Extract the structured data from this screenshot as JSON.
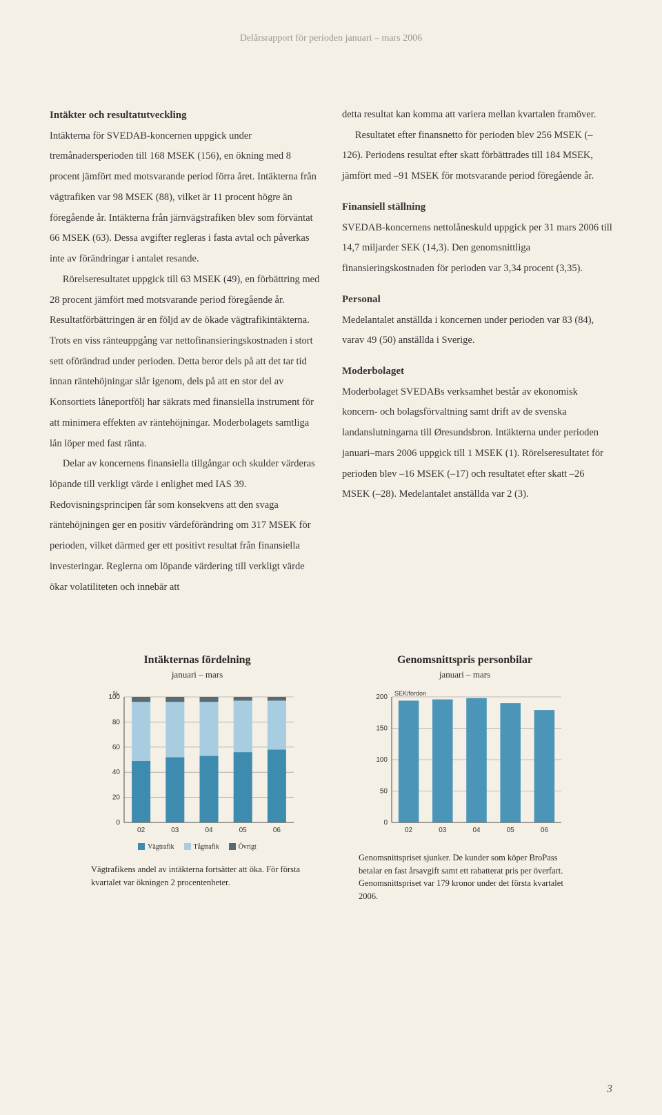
{
  "header": "Delårsrapport för perioden januari – mars 2006",
  "left": {
    "heading": "Intäkter och resultatutveckling",
    "p1": "Intäkterna för SVEDAB-koncernen uppgick under tremånadersperioden till 168 MSEK (156), en ökning med 8 procent jämfört med motsvarande period förra året. Intäkterna från vägtrafiken var 98 MSEK (88), vilket är 11 procent högre än föregående år. Intäkterna från järnvägstrafiken blev som förväntat 66 MSEK (63). Dessa avgifter regleras i fasta avtal och påverkas inte av förändringar i antalet resande.",
    "p2": "Rörelseresultatet uppgick till 63 MSEK (49), en förbättring med 28 procent jämfört med motsvarande period föregående år. Resultatförbättringen är en följd av de ökade vägtrafikintäkterna. Trots en viss ränteuppgång var nettofinansieringskostnaden i stort sett oförändrad under perioden. Detta beror dels på att det tar tid innan räntehöjningar slår igenom, dels på att en stor del av Konsortiets låneportfölj har säkrats med finansiella instrument för att minimera effekten av räntehöjningar. Moderbolagets samtliga lån löper med fast ränta.",
    "p3": "Delar av koncernens finansiella tillgångar och skulder värderas löpande till verkligt värde i enlighet med IAS 39. Redovisningsprincipen får som konsekvens att den svaga räntehöjningen ger en positiv värdeförändring om 317 MSEK för perioden, vilket därmed ger ett positivt resultat från finansiella investeringar. Reglerna om löpande värdering till verkligt värde ökar volatiliteten och innebär att"
  },
  "right": {
    "p1": "detta resultat kan komma att variera mellan kvartalen framöver.",
    "p2": "Resultatet efter finansnetto för perioden blev 256 MSEK (–126). Periodens resultat efter skatt förbättrades till 184 MSEK, jämfört med –91 MSEK för motsvarande period föregående år.",
    "h2": "Finansiell ställning",
    "p3": "SVEDAB-koncernens nettolåneskuld uppgick per 31 mars 2006 till 14,7 miljarder SEK (14,3). Den genomsnittliga finansieringskostnaden för perioden var 3,34 procent (3,35).",
    "h3": "Personal",
    "p4": "Medelantalet anställda i koncernen under perioden var 83 (84), varav 49 (50) anställda i Sverige.",
    "h4": "Moderbolaget",
    "p5": "Moderbolaget SVEDABs verksamhet består av ekonomisk koncern- och bolagsförvaltning samt drift av de svenska landanslutningarna till Øresundsbron. Intäkterna under perioden januari–mars 2006 uppgick till 1 MSEK (1). Rörelseresultatet för perioden blev –16 MSEK (–17) och resultatet efter skatt –26 MSEK (–28). Medelantalet anställda var 2 (3)."
  },
  "chart1": {
    "title": "Intäkternas fördelning",
    "subtitle": "januari – mars",
    "type": "stacked-bar",
    "y_unit": "%",
    "ylim": [
      0,
      100
    ],
    "ytick_step": 20,
    "categories": [
      "02",
      "03",
      "04",
      "05",
      "06"
    ],
    "series": [
      {
        "name": "Vägtrafik",
        "color": "#3d8cb0",
        "values": [
          49,
          52,
          53,
          56,
          58
        ]
      },
      {
        "name": "Tågtrafik",
        "color": "#a9cde0",
        "values": [
          47,
          44,
          43,
          41,
          39
        ]
      },
      {
        "name": "Övrigt",
        "color": "#5a6a72",
        "values": [
          4,
          4,
          4,
          3,
          3
        ]
      }
    ],
    "background_color": "#f4f0e6",
    "grid_color": "#8a8a86",
    "axis_color": "#4a4a46",
    "bar_width": 0.55,
    "caption": "Vägtrafikens andel av intäkterna fortsätter att öka. För första kvartalet var ökningen 2 procentenheter."
  },
  "chart2": {
    "title": "Genomsnittspris personbilar",
    "subtitle": "januari – mars",
    "type": "bar",
    "y_unit": "SEK/fordon",
    "ylim": [
      0,
      200
    ],
    "ytick_step": 50,
    "categories": [
      "02",
      "03",
      "04",
      "05",
      "06"
    ],
    "values": [
      194,
      196,
      198,
      190,
      179
    ],
    "bar_color": "#4a95b8",
    "background_color": "#f4f0e6",
    "grid_color": "#8a8a86",
    "axis_color": "#4a4a46",
    "bar_width": 0.6,
    "caption": "Genomsnittspriset sjunker. De kunder som köper BroPass betalar en fast årsavgift samt ett rabatterat pris per överfart. Genomsnittspriset var 179 kronor under det första kvartalet 2006."
  },
  "page_number": "3"
}
